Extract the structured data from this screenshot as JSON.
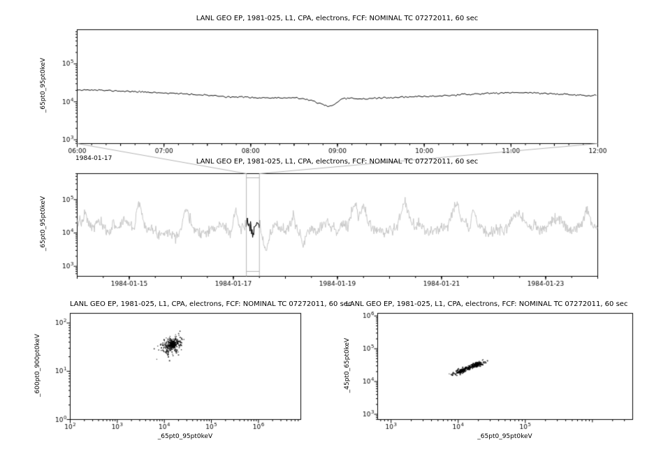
{
  "colors": {
    "background": "#ffffff",
    "frame": "#000000",
    "tick_label": "#000000",
    "connector": "#b4b4b4",
    "context_line": "#c6c6c6",
    "data_line": "#000000"
  },
  "chart_data": [
    {
      "id": "zoom-timeseries",
      "type": "line",
      "title": "LANL GEO EP, 1981-025, L1, CPA, electrons, FCF: NOMINAL TC 07272011, 60 sec",
      "ylabel": "_65pt0_95pt0keV",
      "context_date_label": "1984-01-17",
      "yscale": "log",
      "xlim": [
        6,
        12
      ],
      "ylim_log": [
        2.9,
        5.9
      ],
      "x_ticks": [
        {
          "v": 6,
          "l": "06:00"
        },
        {
          "v": 7,
          "l": "07:00"
        },
        {
          "v": 8,
          "l": "08:00"
        },
        {
          "v": 9,
          "l": "09:00"
        },
        {
          "v": 10,
          "l": "10:00"
        },
        {
          "v": 11,
          "l": "11:00"
        },
        {
          "v": 12,
          "l": "12:00"
        }
      ],
      "x_minor_step": 0.1666667,
      "x_mid_step": 0.5,
      "y_tick_exponents": [
        3,
        4,
        5
      ],
      "line_color": "#000000",
      "noise_dex": 0.01,
      "sample_step": 0.0166667,
      "seed": 11,
      "breakpoints": [
        [
          6.0,
          21000
        ],
        [
          6.25,
          20200
        ],
        [
          6.5,
          19200
        ],
        [
          6.75,
          18200
        ],
        [
          7.0,
          17200
        ],
        [
          7.25,
          16000
        ],
        [
          7.5,
          14800
        ],
        [
          7.75,
          13600
        ],
        [
          8.0,
          13000
        ],
        [
          8.25,
          12600
        ],
        [
          8.5,
          12600
        ],
        [
          8.6,
          12000
        ],
        [
          8.7,
          11000
        ],
        [
          8.8,
          8800
        ],
        [
          8.9,
          7600
        ],
        [
          8.95,
          7900
        ],
        [
          9.0,
          9500
        ],
        [
          9.05,
          11800
        ],
        [
          9.15,
          12300
        ],
        [
          9.3,
          12000
        ],
        [
          9.5,
          12600
        ],
        [
          9.75,
          13200
        ],
        [
          10.0,
          13800
        ],
        [
          10.25,
          14600
        ],
        [
          10.5,
          15600
        ],
        [
          10.75,
          16800
        ],
        [
          11.0,
          17400
        ],
        [
          11.1,
          17600
        ],
        [
          11.25,
          17200
        ],
        [
          11.5,
          16200
        ],
        [
          11.75,
          15200
        ],
        [
          11.9,
          14600
        ],
        [
          12.0,
          14800
        ]
      ]
    },
    {
      "id": "context-timeseries",
      "type": "line",
      "title": "LANL GEO EP, 1981-025, L1, CPA, electrons, FCF: NOMINAL TC 07272011, 60 sec",
      "ylabel": "_65pt0_95pt0keV",
      "yscale": "log",
      "xlim": [
        14,
        24
      ],
      "ylim_log": [
        2.7,
        5.78
      ],
      "x_ticks": [
        {
          "v": 15,
          "l": "1984-01-15"
        },
        {
          "v": 17,
          "l": "1984-01-17"
        },
        {
          "v": 19,
          "l": "1984-01-19"
        },
        {
          "v": 21,
          "l": "1984-01-21"
        },
        {
          "v": 23,
          "l": "1984-01-23"
        }
      ],
      "x_minor_step": 0.5,
      "x_mid_step": 1,
      "y_tick_exponents": [
        3,
        4,
        5
      ],
      "line_color": "#c6c6c6",
      "highlight": {
        "start": 17.25,
        "end": 17.5,
        "color": "#000000"
      },
      "selection_box_color": "#b4b4b4",
      "noise_dex": 0.08,
      "sample_step": 0.01,
      "seed": 7,
      "breakpoints": [
        [
          14.0,
          15000
        ],
        [
          14.05,
          28000
        ],
        [
          14.1,
          17000
        ],
        [
          14.15,
          42000
        ],
        [
          14.2,
          22000
        ],
        [
          14.3,
          13000
        ],
        [
          14.4,
          24000
        ],
        [
          14.5,
          14000
        ],
        [
          14.6,
          10000
        ],
        [
          14.7,
          19000
        ],
        [
          14.8,
          14000
        ],
        [
          14.9,
          26000
        ],
        [
          15.0,
          18000
        ],
        [
          15.1,
          14000
        ],
        [
          15.15,
          60000
        ],
        [
          15.2,
          85000
        ],
        [
          15.25,
          28000
        ],
        [
          15.35,
          14000
        ],
        [
          15.5,
          10500
        ],
        [
          15.6,
          9000
        ],
        [
          15.7,
          12000
        ],
        [
          15.8,
          9500
        ],
        [
          15.9,
          8500
        ],
        [
          16.0,
          14000
        ],
        [
          16.05,
          38000
        ],
        [
          16.1,
          58000
        ],
        [
          16.15,
          24000
        ],
        [
          16.25,
          14000
        ],
        [
          16.35,
          11000
        ],
        [
          16.45,
          10000
        ],
        [
          16.55,
          14000
        ],
        [
          16.65,
          12000
        ],
        [
          16.75,
          19000
        ],
        [
          16.85,
          14000
        ],
        [
          16.95,
          10000
        ],
        [
          17.0,
          24000
        ],
        [
          17.05,
          48000
        ],
        [
          17.1,
          19000
        ],
        [
          17.15,
          12000
        ],
        [
          17.2,
          16000
        ],
        [
          17.25,
          21000
        ],
        [
          17.31,
          16500
        ],
        [
          17.35,
          12600
        ],
        [
          17.368,
          7600
        ],
        [
          17.375,
          9500
        ],
        [
          17.4,
          12800
        ],
        [
          17.45,
          17000
        ],
        [
          17.5,
          14800
        ],
        [
          17.55,
          9000
        ],
        [
          17.6,
          3600
        ],
        [
          17.65,
          3200
        ],
        [
          17.7,
          8000
        ],
        [
          17.75,
          12000
        ],
        [
          17.8,
          20000
        ],
        [
          17.9,
          14000
        ],
        [
          18.0,
          11000
        ],
        [
          18.1,
          19000
        ],
        [
          18.15,
          34000
        ],
        [
          18.2,
          14000
        ],
        [
          18.3,
          8000
        ],
        [
          18.35,
          4200
        ],
        [
          18.4,
          9000
        ],
        [
          18.5,
          14000
        ],
        [
          18.6,
          11500
        ],
        [
          18.7,
          17000
        ],
        [
          18.8,
          24000
        ],
        [
          18.9,
          14000
        ],
        [
          19.0,
          11500
        ],
        [
          19.1,
          19000
        ],
        [
          19.2,
          14000
        ],
        [
          19.3,
          58000
        ],
        [
          19.35,
          80000
        ],
        [
          19.4,
          28000
        ],
        [
          19.5,
          66000
        ],
        [
          19.55,
          38000
        ],
        [
          19.6,
          19000
        ],
        [
          19.7,
          14000
        ],
        [
          19.8,
          11500
        ],
        [
          19.9,
          9800
        ],
        [
          20.0,
          14000
        ],
        [
          20.1,
          11500
        ],
        [
          20.2,
          28000
        ],
        [
          20.3,
          95000
        ],
        [
          20.35,
          48000
        ],
        [
          20.4,
          24000
        ],
        [
          20.5,
          14000
        ],
        [
          20.6,
          19000
        ],
        [
          20.7,
          11500
        ],
        [
          20.8,
          9800
        ],
        [
          20.9,
          11500
        ],
        [
          21.0,
          14000
        ],
        [
          21.1,
          19000
        ],
        [
          21.2,
          38000
        ],
        [
          21.3,
          88000
        ],
        [
          21.35,
          38000
        ],
        [
          21.45,
          19000
        ],
        [
          21.55,
          14000
        ],
        [
          21.6,
          66000
        ],
        [
          21.65,
          33000
        ],
        [
          21.7,
          17000
        ],
        [
          21.8,
          11500
        ],
        [
          21.9,
          9800
        ],
        [
          22.0,
          11500
        ],
        [
          22.1,
          14000
        ],
        [
          22.2,
          11500
        ],
        [
          22.3,
          19000
        ],
        [
          22.4,
          28000
        ],
        [
          22.5,
          38000
        ],
        [
          22.6,
          19000
        ],
        [
          22.7,
          14000
        ],
        [
          22.8,
          17000
        ],
        [
          22.9,
          11500
        ],
        [
          23.0,
          14000
        ],
        [
          23.1,
          19000
        ],
        [
          23.2,
          24000
        ],
        [
          23.3,
          28000
        ],
        [
          23.4,
          14000
        ],
        [
          23.5,
          11500
        ],
        [
          23.6,
          14000
        ],
        [
          23.7,
          19000
        ],
        [
          23.8,
          56000
        ],
        [
          23.85,
          28000
        ],
        [
          23.9,
          17000
        ],
        [
          24.0,
          14500
        ]
      ]
    },
    {
      "id": "scatter-600-900-vs-65-95",
      "type": "scatter",
      "title": "LANL GEO EP, 1981-025, L1, CPA, electrons, FCF: NOMINAL TC 07272011, 60 sec",
      "xlabel": "_65pt0_95pt0keV",
      "ylabel": "_600pt0_900pt0keV",
      "xscale": "log",
      "yscale": "log",
      "xlim_log": [
        2,
        6.9
      ],
      "ylim_log": [
        0,
        2.2
      ],
      "x_tick_exponents": [
        2,
        3,
        4,
        5,
        6
      ],
      "y_tick_exponents": [
        0,
        1,
        2
      ],
      "point_color": "#000000",
      "seed": 3,
      "clusters": [
        {
          "n": 230,
          "cx_log": 4.17,
          "cy_log": 1.55,
          "sx_dex": 0.1,
          "sy_dex": 0.09,
          "corr": 0.3
        },
        {
          "n": 120,
          "cx_log": 4.17,
          "cy_log": 1.56,
          "sx_dex": 0.04,
          "sy_dex": 0.04,
          "corr": 0.2
        },
        {
          "n": 22,
          "cx_log": 4.02,
          "cy_log": 1.42,
          "sx_dex": 0.12,
          "sy_dex": 0.1,
          "corr": 0.2
        }
      ]
    },
    {
      "id": "scatter-45-65-vs-65-95",
      "type": "scatter",
      "title": "LANL GEO EP, 1981-025, L1, CPA, electrons, FCF: NOMINAL TC 07272011, 60 sec",
      "xlabel": "_65pt0_95pt0keV",
      "ylabel": "_45pt0_65pt0keV",
      "xscale": "log",
      "yscale": "log",
      "xlim_log": [
        2.8,
        6.6
      ],
      "ylim_log": [
        2.84,
        6.08
      ],
      "x_tick_exponents": [
        3,
        4,
        5
      ],
      "y_tick_exponents": [
        3,
        4,
        5,
        6
      ],
      "point_color": "#000000",
      "seed": 5,
      "clusters": [
        {
          "n": 220,
          "cx_log": 4.13,
          "cy_log": 4.4,
          "sx_dex": 0.12,
          "sy_dex": 0.1,
          "corr": 0.93
        },
        {
          "n": 120,
          "cx_log": 4.28,
          "cy_log": 4.52,
          "sx_dex": 0.045,
          "sy_dex": 0.04,
          "corr": 0.5
        },
        {
          "n": 70,
          "cx_log": 4.05,
          "cy_log": 4.31,
          "sx_dex": 0.03,
          "sy_dex": 0.03,
          "corr": 0.5
        }
      ]
    }
  ]
}
